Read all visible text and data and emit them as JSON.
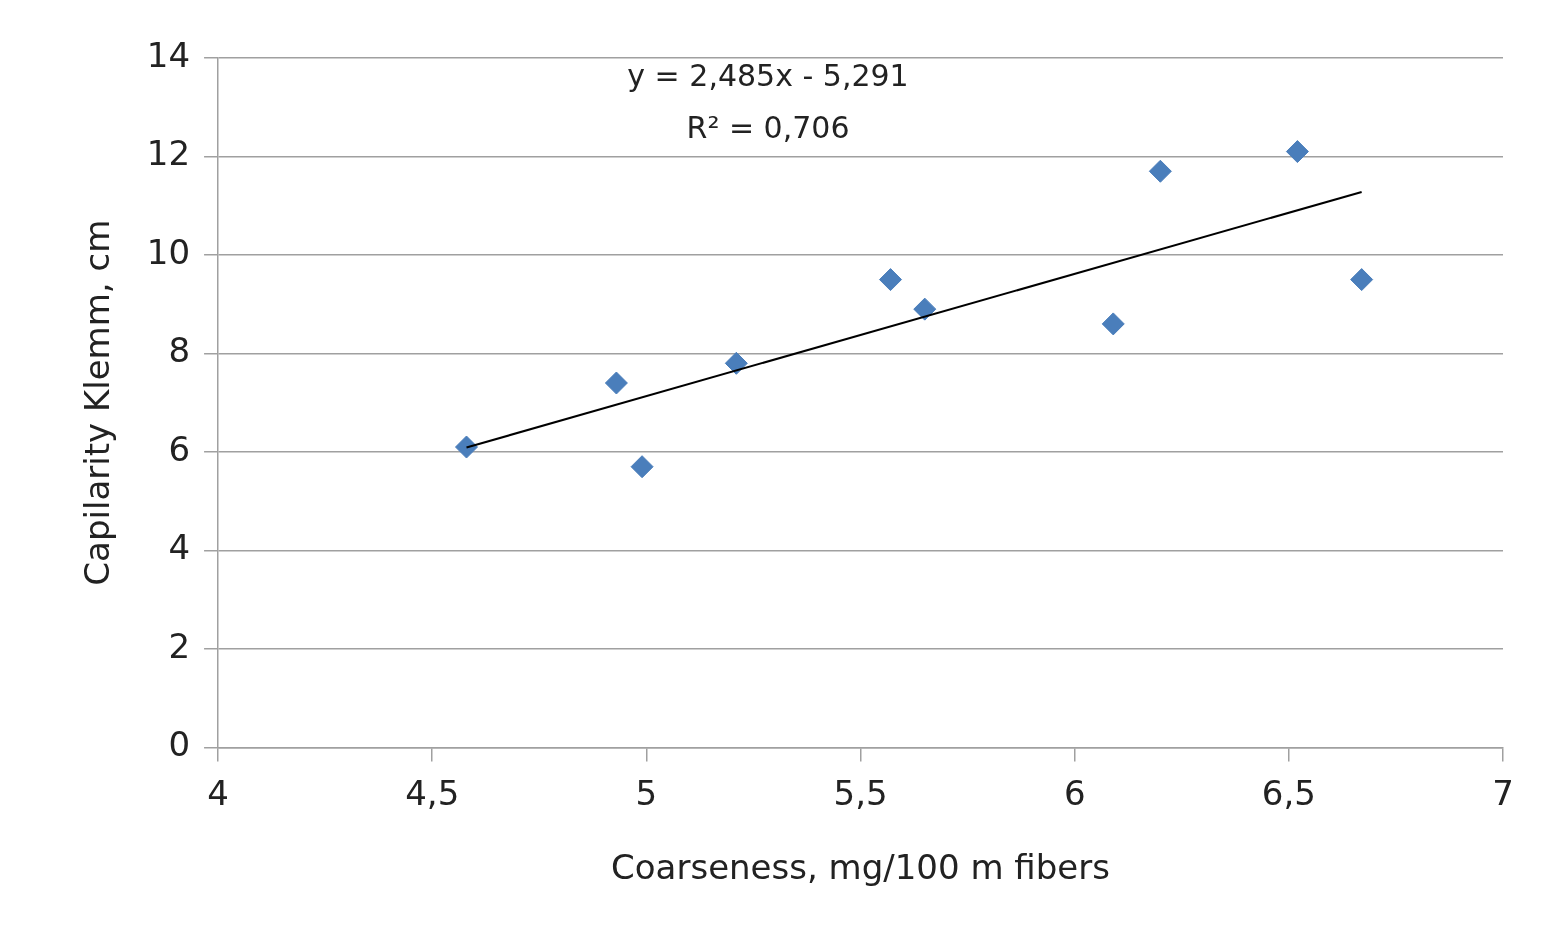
{
  "chart_data": {
    "type": "scatter",
    "xlabel": "Coarseness, mg/100 m fibers",
    "ylabel": "Capilarity Klemm, cm",
    "xlim": [
      4,
      7
    ],
    "xticks": [
      4,
      {
        "value": 4.5,
        "label": "4,5"
      },
      5,
      {
        "value": 5.5,
        "label": "5,5"
      },
      6,
      {
        "value": 6.5,
        "label": "6,5"
      },
      7
    ],
    "ylim": [
      0,
      14
    ],
    "yticks": [
      0,
      2,
      4,
      6,
      8,
      10,
      12,
      14
    ],
    "grid": "y",
    "legend": false,
    "marker": "diamond",
    "annotations": [
      "y = 2,485x - 5,291",
      "R² = 0,706"
    ],
    "series": [
      {
        "color": "#4a7ebb",
        "x": [
          4.58,
          4.93,
          4.99,
          5.21,
          5.57,
          5.65,
          6.09,
          6.2,
          6.52,
          6.67
        ],
        "values": [
          6.1,
          7.4,
          5.7,
          7.8,
          9.5,
          8.9,
          8.6,
          11.7,
          12.1,
          9.5
        ]
      },
      {
        "type": "line",
        "color": "#000000",
        "marker": "none",
        "line_style": "solid",
        "x": [
          4.58,
          6.67
        ],
        "values": [
          6.09,
          11.28
        ]
      }
    ]
  }
}
